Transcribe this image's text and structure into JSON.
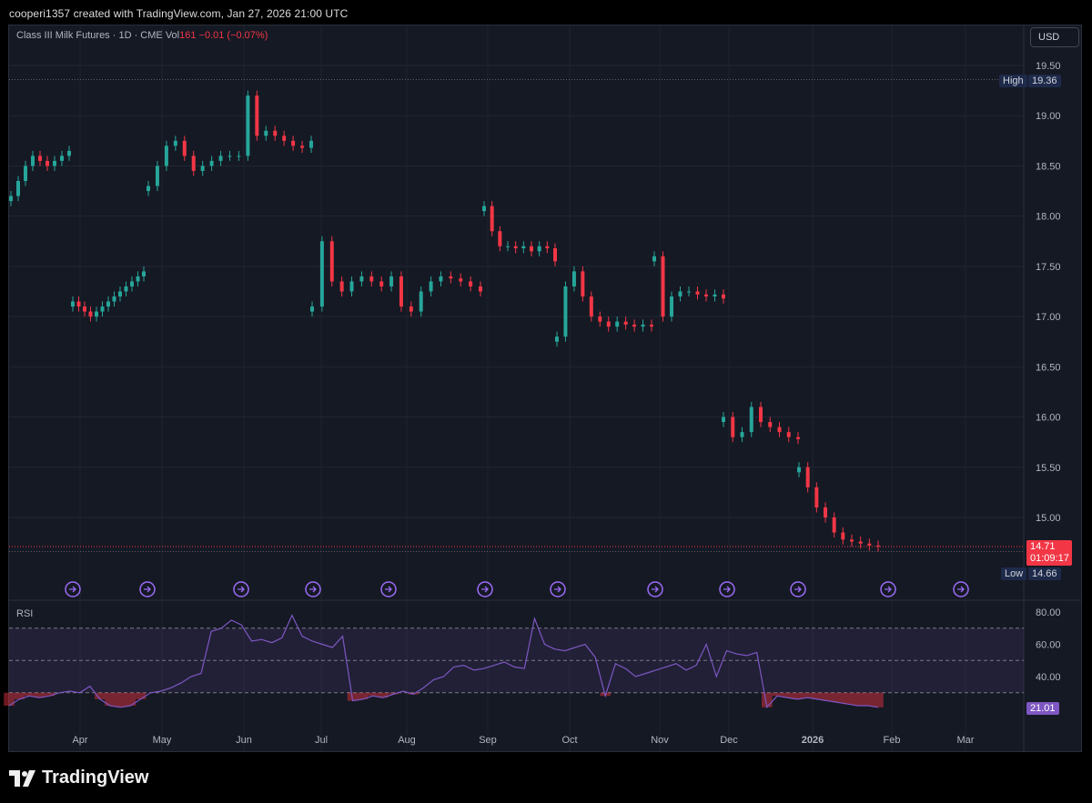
{
  "header": {
    "attribution": "cooperi1357 created with TradingView.com, Jan 27, 2026 21:00 UTC"
  },
  "legend": {
    "symbol": "Class III Milk Futures · 1D · CME",
    "vol_label": "Vol",
    "vol_value": "161",
    "change": "−0.01 (−0.07%)"
  },
  "currency": "USD",
  "price_scale": {
    "ticks": [
      "19.50",
      "19.00",
      "18.50",
      "18.00",
      "17.50",
      "17.00",
      "16.50",
      "16.00",
      "15.50",
      "15.00"
    ],
    "high_label": "High",
    "high_value": "19.36",
    "low_label": "Low",
    "low_value": "14.66",
    "last_price": "14.71",
    "countdown": "01:09:17"
  },
  "rsi": {
    "label": "RSI",
    "ticks": [
      "80.00",
      "60.00",
      "40.00"
    ],
    "last_value": "21.01"
  },
  "time_axis": {
    "labels": [
      "Apr",
      "May",
      "Jun",
      "Jul",
      "Aug",
      "Sep",
      "Oct",
      "Nov",
      "Dec",
      "2026",
      "Feb",
      "Mar"
    ]
  },
  "logo": {
    "text": "TradingView"
  },
  "colors": {
    "up": "#26a69a",
    "down": "#f23645",
    "rsi_line": "#7e57c2",
    "background": "#151924"
  },
  "icons": [
    "rollover-icon"
  ],
  "chart_data": {
    "type": "candlestick",
    "title": "Class III Milk Futures · 1D · CME",
    "ylim": [
      14.5,
      19.6
    ],
    "series": [
      {
        "segment": "A",
        "from": "Mar",
        "to": "Jun",
        "values": [
          18.2,
          18.35,
          18.5,
          18.6,
          18.55,
          18.5,
          18.55,
          18.6,
          18.65
        ],
        "label_x": "Mar"
      },
      {
        "segment": "B",
        "values": [
          17.15,
          17.1,
          17.05,
          17.0,
          17.05,
          17.1,
          17.15,
          17.2,
          17.25,
          17.3,
          17.35,
          17.4,
          17.45
        ]
      },
      {
        "segment": "C",
        "values": [
          18.3,
          18.5,
          18.7,
          18.75,
          18.6,
          18.45,
          18.5,
          18.55,
          18.6,
          18.6,
          18.6,
          19.2,
          18.8,
          18.85,
          18.8,
          18.75,
          18.7,
          18.68,
          18.75
        ]
      },
      {
        "segment": "D",
        "values": [
          17.1,
          17.75,
          17.35,
          17.25,
          17.35,
          17.4,
          17.35,
          17.3,
          17.4,
          17.1,
          17.05,
          17.25,
          17.35,
          17.4,
          17.38,
          17.35,
          17.3,
          17.25
        ]
      },
      {
        "segment": "E",
        "values": [
          18.1,
          17.85,
          17.7,
          17.7,
          17.68,
          17.7,
          17.65,
          17.7,
          17.68,
          17.55
        ]
      },
      {
        "segment": "F",
        "values": [
          16.8,
          17.3,
          17.45,
          17.2,
          17.0,
          16.95,
          16.9,
          16.95,
          16.92,
          16.9,
          16.92,
          16.9
        ]
      },
      {
        "segment": "G",
        "values": [
          17.6,
          17.0,
          17.2,
          17.25,
          17.25,
          17.22,
          17.2,
          17.22,
          17.18
        ]
      },
      {
        "segment": "H",
        "values": [
          16.0,
          15.8,
          15.85,
          16.1,
          15.95,
          15.9,
          15.85,
          15.8,
          15.78
        ]
      },
      {
        "segment": "I",
        "values": [
          15.5,
          15.3,
          15.1,
          15.0,
          14.85,
          14.78,
          14.76,
          14.74,
          14.72,
          14.71
        ]
      }
    ],
    "rsi_ylim": [
      10,
      85
    ],
    "rsi_values": [
      22,
      26,
      28,
      27,
      28,
      30,
      31,
      30,
      34,
      26,
      22,
      21,
      22,
      26,
      30,
      31,
      33,
      36,
      40,
      42,
      68,
      70,
      75,
      72,
      62,
      63,
      61,
      64,
      78,
      65,
      62,
      60,
      58,
      65,
      25,
      26,
      28,
      27,
      29,
      31,
      29,
      33,
      38,
      40,
      46,
      47,
      44,
      45,
      47,
      49,
      46,
      45,
      76,
      60,
      57,
      56,
      58,
      60,
      52,
      28,
      48,
      45,
      40,
      42,
      44,
      46,
      48,
      44,
      47,
      60,
      40,
      56,
      54,
      53,
      55,
      21,
      28,
      27,
      26,
      27,
      26,
      25,
      24,
      23,
      22,
      22,
      21
    ]
  }
}
